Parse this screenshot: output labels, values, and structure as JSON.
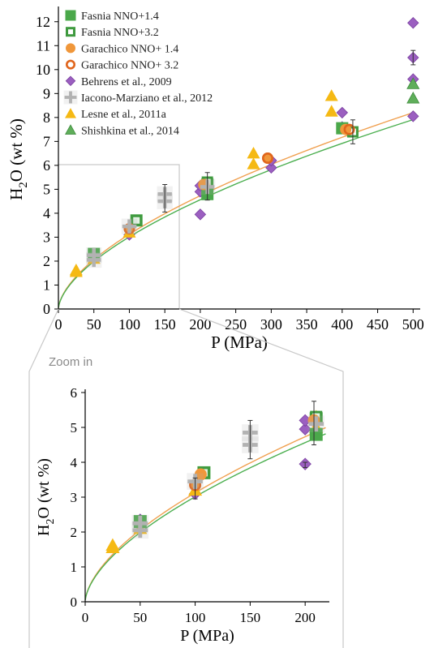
{
  "chart_data": [
    {
      "type": "scatter",
      "id": "main",
      "xlabel": "P (MPa)",
      "ylabel_main": "H",
      "ylabel_sub": "2",
      "ylabel_rest": "O (wt %)",
      "xlim": [
        0,
        510
      ],
      "ylim": [
        0,
        12.5
      ],
      "xticks": [
        0,
        50,
        100,
        150,
        200,
        250,
        300,
        350,
        400,
        450,
        500
      ],
      "yticks": [
        0,
        1,
        2,
        3,
        4,
        5,
        6,
        7,
        8,
        9,
        10,
        11,
        12
      ],
      "legend_position": "top-left",
      "series": [
        {
          "name": "Fasnia NNO+1.4",
          "marker": "square-filled",
          "color": "#4aa84a",
          "points": [
            [
              50,
              2.3
            ],
            [
              110,
              3.7
            ],
            [
              210,
              4.8
            ],
            [
              210,
              5.2
            ],
            [
              400,
              7.55
            ]
          ]
        },
        {
          "name": "Fasnia NNO+3.2",
          "marker": "square-open",
          "color": "#3f9a3f",
          "points": [
            [
              110,
              3.7
            ],
            [
              210,
              5.3
            ],
            [
              415,
              7.4
            ]
          ]
        },
        {
          "name": "Garachico NNO+ 1.4",
          "marker": "circle-filled",
          "color": "#f0973a",
          "points": [
            [
              100,
              3.35
            ],
            [
              205,
              5.2
            ],
            [
              295,
              6.3
            ],
            [
              405,
              7.5
            ]
          ]
        },
        {
          "name": "Garachico NNO+ 3.2",
          "marker": "circle-open",
          "color": "#e0651c",
          "points": [
            [
              100,
              3.35
            ],
            [
              295,
              6.3
            ],
            [
              410,
              7.5
            ]
          ]
        },
        {
          "name": "Behrens et al., 2009",
          "marker": "diamond",
          "color": "#9b5fc0",
          "points": [
            [
              50,
              2.3
            ],
            [
              100,
              3.1
            ],
            [
              200,
              3.95
            ],
            [
              200,
              4.9
            ],
            [
              200,
              5.15
            ],
            [
              300,
              5.9
            ],
            [
              300,
              6.2
            ],
            [
              400,
              7.6
            ],
            [
              400,
              8.2
            ],
            [
              500,
              8.05
            ],
            [
              500,
              9.6
            ],
            [
              500,
              10.5
            ],
            [
              500,
              11.95
            ]
          ]
        },
        {
          "name": "Iacono-Marziano et al., 2012",
          "marker": "plus",
          "color": "#b3b3b3",
          "points": [
            [
              50,
              2.05
            ],
            [
              50,
              2.25
            ],
            [
              100,
              3.45
            ],
            [
              150,
              4.5
            ],
            [
              150,
              4.8
            ],
            [
              210,
              5.1
            ]
          ]
        },
        {
          "name": "Lesne et al., 2011a",
          "marker": "triangle",
          "color": "#f5b914",
          "points": [
            [
              25,
              1.55
            ],
            [
              25,
              1.62
            ],
            [
              50,
              2.1
            ],
            [
              100,
              3.2
            ],
            [
              210,
              5.0
            ],
            [
              210,
              5.3
            ],
            [
              275,
              6.05
            ],
            [
              275,
              6.5
            ],
            [
              385,
              8.25
            ],
            [
              385,
              8.9
            ]
          ]
        },
        {
          "name": "Shishkina et al., 2014",
          "marker": "triangle",
          "color": "#5fae5a",
          "points": [
            [
              500,
              8.8
            ],
            [
              500,
              9.4
            ]
          ]
        }
      ]
    },
    {
      "type": "scatter",
      "id": "zoom",
      "title": "Zoom in",
      "xlabel": "P (MPa)",
      "ylabel_main": "H",
      "ylabel_sub": "2",
      "ylabel_rest": "O (wt %)",
      "xlim": [
        0,
        222
      ],
      "ylim": [
        0,
        6
      ],
      "xticks": [
        0,
        50,
        100,
        150,
        200
      ],
      "yticks": [
        0,
        1,
        2,
        3,
        4,
        5,
        6
      ],
      "series": [
        {
          "name": "Fasnia NNO+1.4",
          "marker": "square-filled",
          "color": "#4aa84a",
          "points": [
            [
              50,
              2.3
            ],
            [
              108,
              3.7
            ],
            [
              210,
              4.8
            ],
            [
              210,
              5.25
            ]
          ]
        },
        {
          "name": "Fasnia NNO+3.2",
          "marker": "square-open",
          "color": "#3f9a3f",
          "points": [
            [
              108,
              3.7
            ],
            [
              210,
              5.3
            ]
          ]
        },
        {
          "name": "Garachico NNO+ 1.4",
          "marker": "circle-filled",
          "color": "#f0973a",
          "points": [
            [
              100,
              3.35
            ],
            [
              105,
              3.65
            ],
            [
              208,
              5.2
            ]
          ]
        },
        {
          "name": "Garachico NNO+ 3.2",
          "marker": "circle-open",
          "color": "#e0651c",
          "points": [
            [
              100,
              3.35
            ]
          ]
        },
        {
          "name": "Behrens et al., 2009",
          "marker": "diamond",
          "color": "#9b5fc0",
          "points": [
            [
              50,
              2.35
            ],
            [
              100,
              3.1
            ],
            [
              200,
              3.95
            ],
            [
              200,
              4.95
            ],
            [
              200,
              5.2
            ]
          ]
        },
        {
          "name": "Iacono-Marziano et al., 2012",
          "marker": "plus",
          "color": "#b3b3b3",
          "points": [
            [
              50,
              2.05
            ],
            [
              50,
              2.25
            ],
            [
              100,
              3.45
            ],
            [
              150,
              4.5
            ],
            [
              150,
              4.85
            ],
            [
              210,
              5.1
            ]
          ]
        },
        {
          "name": "Lesne et al., 2011a",
          "marker": "triangle",
          "color": "#f5b914",
          "points": [
            [
              25,
              1.55
            ],
            [
              25,
              1.62
            ],
            [
              50,
              2.1
            ],
            [
              100,
              3.2
            ],
            [
              210,
              5.0
            ],
            [
              210,
              5.3
            ]
          ]
        }
      ]
    }
  ]
}
